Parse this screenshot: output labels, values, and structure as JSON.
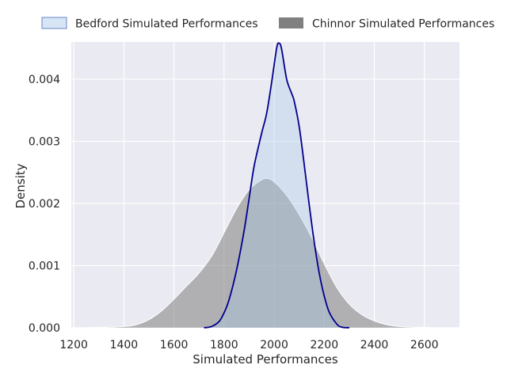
{
  "chart_data": {
    "type": "area",
    "title": "",
    "xlabel": "Simulated Performances",
    "ylabel": "Density",
    "xlim": [
      1190,
      2740
    ],
    "ylim": [
      0,
      0.0046
    ],
    "xticks": [
      1200,
      1400,
      1600,
      1800,
      2000,
      2200,
      2400,
      2600
    ],
    "yticks": [
      0.0,
      0.001,
      0.002,
      0.003,
      0.004
    ],
    "ytick_labels": [
      "0.000",
      "0.001",
      "0.002",
      "0.003",
      "0.004"
    ],
    "grid": true,
    "legend_position": "top-center",
    "series": [
      {
        "name": "Chinnor Simulated Performances",
        "fill_color": "#808080",
        "line_color": "#ffffff",
        "x": [
          1250,
          1350,
          1400,
          1450,
          1500,
          1550,
          1600,
          1650,
          1700,
          1750,
          1800,
          1850,
          1900,
          1950,
          1975,
          2000,
          2050,
          2100,
          2150,
          2200,
          2250,
          2300,
          2350,
          2400,
          2450,
          2500,
          2550,
          2600,
          2650,
          2720
        ],
        "y": [
          0.0,
          1e-05,
          2e-05,
          5e-05,
          0.00013,
          0.00027,
          0.00046,
          0.00067,
          0.00088,
          0.00115,
          0.00153,
          0.00192,
          0.00222,
          0.00238,
          0.0024,
          0.00235,
          0.00213,
          0.00182,
          0.00145,
          0.00103,
          0.00065,
          0.00038,
          0.00021,
          0.00011,
          5e-05,
          2e-05,
          1e-05,
          5e-06,
          0.0,
          0.0
        ]
      },
      {
        "name": "Bedford Simulated Performances",
        "fill_color": "#a8c8e8",
        "line_color": "#00008b",
        "x": [
          1720,
          1750,
          1780,
          1800,
          1820,
          1850,
          1880,
          1900,
          1920,
          1950,
          1970,
          1990,
          2010,
          2020,
          2030,
          2050,
          2070,
          2080,
          2100,
          2120,
          2140,
          2160,
          2180,
          2200,
          2220,
          2250,
          2270,
          2300
        ],
        "y": [
          0.0,
          2e-05,
          0.0001,
          0.00024,
          0.00045,
          0.00093,
          0.00156,
          0.00208,
          0.0026,
          0.00313,
          0.00345,
          0.00395,
          0.0045,
          0.00458,
          0.00448,
          0.004,
          0.00377,
          0.00365,
          0.00324,
          0.00263,
          0.00198,
          0.00138,
          0.00088,
          0.00051,
          0.00025,
          6e-05,
          1e-05,
          0.0
        ]
      }
    ]
  },
  "legend": [
    {
      "label": "Bedford Simulated Performances",
      "color": "#d6e6f4",
      "edge": "#6a80c8"
    },
    {
      "label": "Chinnor Simulated Performances",
      "color": "#808080",
      "edge": "#808080"
    }
  ]
}
